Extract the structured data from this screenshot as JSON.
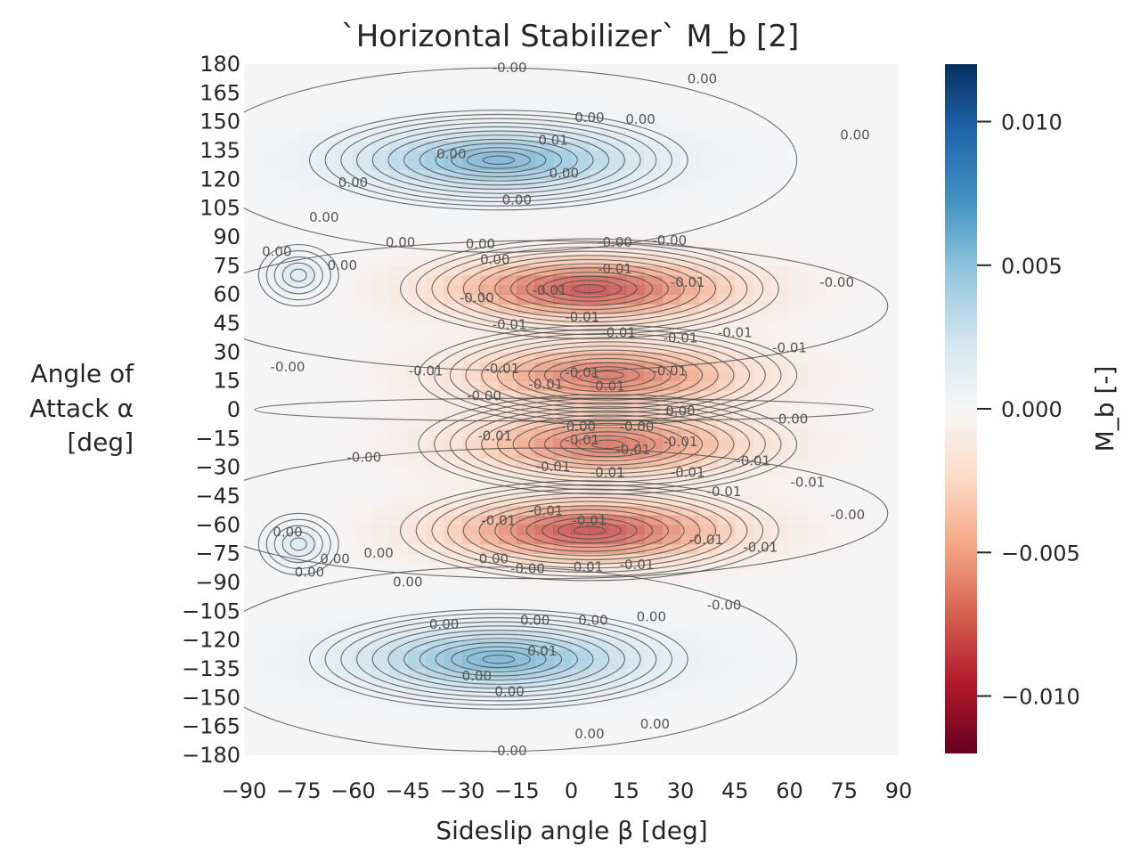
{
  "chart_data": {
    "type": "heatmap",
    "title": "`Horizontal Stabilizer` M_b [2]",
    "xlabel": "Sideslip angle β [deg]",
    "ylabel": [
      "Angle of",
      "Attack α",
      "[deg]"
    ],
    "colorbar_label": "M_b [-]",
    "xlim": [
      -90,
      90
    ],
    "ylim": [
      -180,
      180
    ],
    "x_ticks": [
      "−90",
      "−75",
      "−60",
      "−45",
      "−30",
      "−15",
      "0",
      "15",
      "30",
      "45",
      "60",
      "75",
      "90"
    ],
    "y_ticks": [
      "180",
      "165",
      "150",
      "135",
      "120",
      "105",
      "90",
      "75",
      "60",
      "45",
      "30",
      "15",
      "0",
      "−15",
      "−30",
      "−45",
      "−60",
      "−75",
      "−90",
      "−105",
      "−120",
      "−135",
      "−150",
      "−165",
      "−180"
    ],
    "colorbar_range": [
      -0.012,
      0.012
    ],
    "colorbar_ticks": [
      "0.010",
      "0.005",
      "0.000",
      "−0.005",
      "−0.010"
    ],
    "colormap": "RdBu",
    "colormap_stops": [
      "#67001f",
      "#b2182b",
      "#d6604d",
      "#f4a582",
      "#fddbc7",
      "#f7f7f7",
      "#d1e5f0",
      "#92c5de",
      "#4393c3",
      "#2166ac",
      "#053061"
    ],
    "features": [
      {
        "kind": "max",
        "beta": -20,
        "alpha": 130,
        "value": 0.006
      },
      {
        "kind": "max",
        "beta": -20,
        "alpha": -130,
        "value": 0.006
      },
      {
        "kind": "min",
        "beta": 5,
        "alpha": 63,
        "value": -0.0085
      },
      {
        "kind": "min",
        "beta": 5,
        "alpha": -63,
        "value": -0.0085
      },
      {
        "kind": "min",
        "beta": 10,
        "alpha": 18,
        "value": -0.007
      },
      {
        "kind": "min",
        "beta": 10,
        "alpha": -18,
        "value": -0.007
      },
      {
        "kind": "max",
        "beta": -75,
        "alpha": 70,
        "value": 0.002
      },
      {
        "kind": "max",
        "beta": -75,
        "alpha": -70,
        "value": 0.002
      }
    ],
    "contour_labels": [
      {
        "beta": -17,
        "alpha": 178,
        "text": "-0.00"
      },
      {
        "beta": 36,
        "alpha": 172,
        "text": "0.00"
      },
      {
        "beta": 5,
        "alpha": 152,
        "text": "0.00"
      },
      {
        "beta": 19,
        "alpha": 151,
        "text": "0.00"
      },
      {
        "beta": 78,
        "alpha": 143,
        "text": "0.00"
      },
      {
        "beta": -5,
        "alpha": 140,
        "text": "0.01"
      },
      {
        "beta": -33,
        "alpha": 133,
        "text": "0.00"
      },
      {
        "beta": -2,
        "alpha": 123,
        "text": "0.00"
      },
      {
        "beta": -60,
        "alpha": 118,
        "text": "0.00"
      },
      {
        "beta": -15,
        "alpha": 109,
        "text": "0.00"
      },
      {
        "beta": -68,
        "alpha": 100,
        "text": "0.00"
      },
      {
        "beta": -81,
        "alpha": 82,
        "text": "0.00"
      },
      {
        "beta": -47,
        "alpha": 87,
        "text": "0.00"
      },
      {
        "beta": -25,
        "alpha": 86,
        "text": "0.00"
      },
      {
        "beta": -21,
        "alpha": 78,
        "text": "0.00"
      },
      {
        "beta": -63,
        "alpha": 75,
        "text": "0.00"
      },
      {
        "beta": 12,
        "alpha": 87,
        "text": "-0.00"
      },
      {
        "beta": 27,
        "alpha": 88,
        "text": "-0.00"
      },
      {
        "beta": 12,
        "alpha": 73,
        "text": "-0.01"
      },
      {
        "beta": -6,
        "alpha": 62,
        "text": "-0.01"
      },
      {
        "beta": 32,
        "alpha": 66,
        "text": "-0.01"
      },
      {
        "beta": 73,
        "alpha": 66,
        "text": "-0.00"
      },
      {
        "beta": -26,
        "alpha": 58,
        "text": "-0.00"
      },
      {
        "beta": 3,
        "alpha": 48,
        "text": "-0.01"
      },
      {
        "beta": -17,
        "alpha": 44,
        "text": "-0.01"
      },
      {
        "beta": 13,
        "alpha": 40,
        "text": "-0.01"
      },
      {
        "beta": 30,
        "alpha": 37,
        "text": "-0.01"
      },
      {
        "beta": 45,
        "alpha": 40,
        "text": "-0.01"
      },
      {
        "beta": 60,
        "alpha": 32,
        "text": "-0.01"
      },
      {
        "beta": -78,
        "alpha": 22,
        "text": "-0.00"
      },
      {
        "beta": -40,
        "alpha": 20,
        "text": "-0.01"
      },
      {
        "beta": -19,
        "alpha": 21,
        "text": "-0.01"
      },
      {
        "beta": 3,
        "alpha": 19,
        "text": "-0.01"
      },
      {
        "beta": 27,
        "alpha": 20,
        "text": "-0.01"
      },
      {
        "beta": -7,
        "alpha": 13,
        "text": "-0.01"
      },
      {
        "beta": 10,
        "alpha": 12,
        "text": "-0.01"
      },
      {
        "beta": -24,
        "alpha": 7,
        "text": "-0.00"
      },
      {
        "beta": 30,
        "alpha": -1,
        "text": "0.00"
      },
      {
        "beta": 61,
        "alpha": -5,
        "text": "0.00"
      },
      {
        "beta": 2,
        "alpha": -9,
        "text": "-0.00"
      },
      {
        "beta": 18,
        "alpha": -9,
        "text": "-0.00"
      },
      {
        "beta": -21,
        "alpha": -14,
        "text": "-0.01"
      },
      {
        "beta": 3,
        "alpha": -16,
        "text": "-0.01"
      },
      {
        "beta": 30,
        "alpha": -17,
        "text": "-0.01"
      },
      {
        "beta": -57,
        "alpha": -25,
        "text": "-0.00"
      },
      {
        "beta": 17,
        "alpha": -21,
        "text": "-0.01"
      },
      {
        "beta": 50,
        "alpha": -27,
        "text": "-0.01"
      },
      {
        "beta": -5,
        "alpha": -30,
        "text": "-0.01"
      },
      {
        "beta": 10,
        "alpha": -33,
        "text": "-0.01"
      },
      {
        "beta": 32,
        "alpha": -33,
        "text": "-0.01"
      },
      {
        "beta": 42,
        "alpha": -43,
        "text": "-0.01"
      },
      {
        "beta": 65,
        "alpha": -38,
        "text": "-0.01"
      },
      {
        "beta": 76,
        "alpha": -55,
        "text": "-0.00"
      },
      {
        "beta": -20,
        "alpha": -58,
        "text": "-0.01"
      },
      {
        "beta": 5,
        "alpha": -58,
        "text": "-0.01"
      },
      {
        "beta": -7,
        "alpha": -53,
        "text": "-0.01"
      },
      {
        "beta": 37,
        "alpha": -68,
        "text": "-0.01"
      },
      {
        "beta": 52,
        "alpha": -72,
        "text": "-0.01"
      },
      {
        "beta": -78,
        "alpha": -64,
        "text": "0.00"
      },
      {
        "beta": -65,
        "alpha": -78,
        "text": "0.00"
      },
      {
        "beta": -53,
        "alpha": -75,
        "text": "0.00"
      },
      {
        "beta": -22,
        "alpha": -78,
        "text": "-0.00"
      },
      {
        "beta": -12,
        "alpha": -83,
        "text": "-0.00"
      },
      {
        "beta": 4,
        "alpha": -82,
        "text": "-0.01"
      },
      {
        "beta": 18,
        "alpha": -81,
        "text": "-0.01"
      },
      {
        "beta": -72,
        "alpha": -85,
        "text": "0.00"
      },
      {
        "beta": -45,
        "alpha": -90,
        "text": "0.00"
      },
      {
        "beta": 42,
        "alpha": -102,
        "text": "-0.00"
      },
      {
        "beta": -35,
        "alpha": -112,
        "text": "0.00"
      },
      {
        "beta": -10,
        "alpha": -110,
        "text": "0.00"
      },
      {
        "beta": 6,
        "alpha": -110,
        "text": "0.00"
      },
      {
        "beta": 22,
        "alpha": -108,
        "text": "0.00"
      },
      {
        "beta": -8,
        "alpha": -126,
        "text": "0.01"
      },
      {
        "beta": -26,
        "alpha": -139,
        "text": "0.00"
      },
      {
        "beta": -17,
        "alpha": -147,
        "text": "0.00"
      },
      {
        "beta": 23,
        "alpha": -164,
        "text": "0.00"
      },
      {
        "beta": 5,
        "alpha": -169,
        "text": "0.00"
      },
      {
        "beta": -17,
        "alpha": -178,
        "text": "-0.00"
      }
    ]
  }
}
